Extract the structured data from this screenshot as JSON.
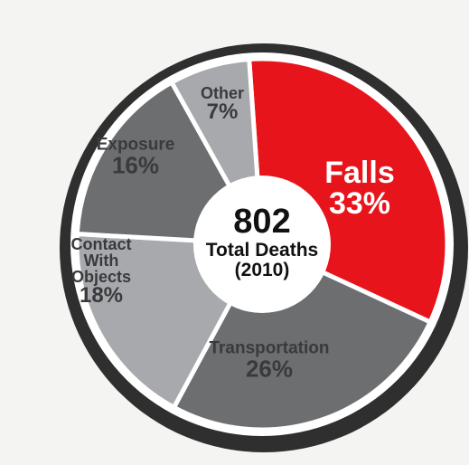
{
  "chart_data": {
    "type": "pie",
    "categories": [
      "Falls",
      "Transportation",
      "Contact With Objects",
      "Exposure",
      "Other"
    ],
    "values": [
      33,
      26,
      18,
      16,
      7
    ],
    "value_labels": [
      "33%",
      "26%",
      "18%",
      "16%",
      "7%"
    ],
    "colors": [
      "#e8141c",
      "#6d6e70",
      "#a7a9ac",
      "#6d6e70",
      "#a7a9ac"
    ],
    "total": 802,
    "total_label": "Total Deaths",
    "year_label": "(2010)"
  }
}
